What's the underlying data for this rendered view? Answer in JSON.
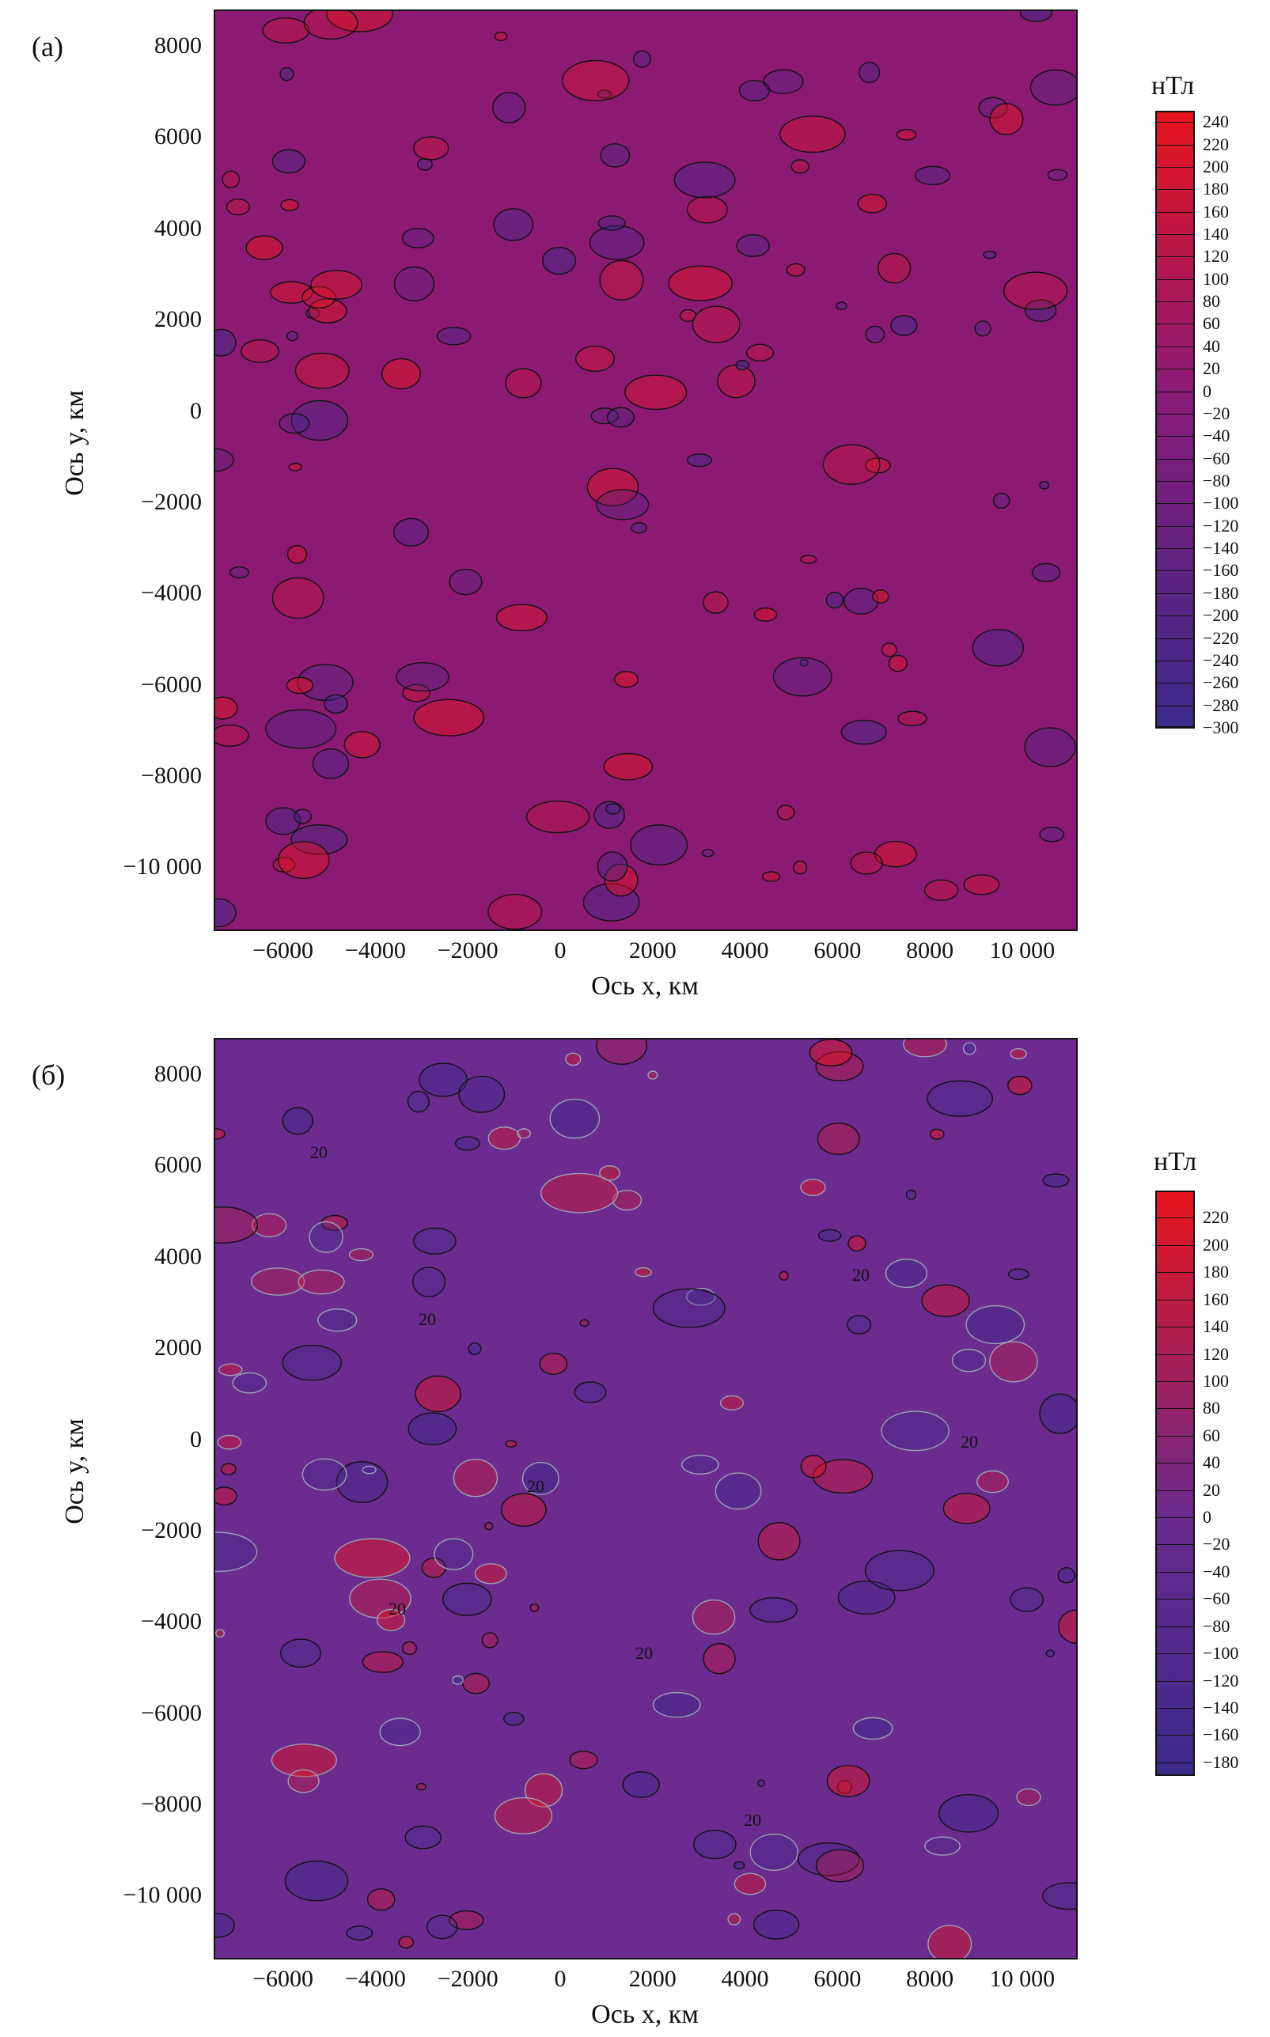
{
  "chart_data": [
    {
      "type": "heatmap",
      "panel_label": "(а)",
      "xlabel": "Ось x, км",
      "ylabel": "Ось y, км",
      "xlim": [
        -7500,
        11200
      ],
      "ylim": [
        -11400,
        8800
      ],
      "xticks": [
        "−6000",
        "−4000",
        "−2000",
        "0",
        "2000",
        "4000",
        "6000",
        "8000",
        "10 000"
      ],
      "xtick_values": [
        -6000,
        -4000,
        -2000,
        0,
        2000,
        4000,
        6000,
        8000,
        10000
      ],
      "yticks": [
        "8000",
        "6000",
        "4000",
        "2000",
        "0",
        "−2000",
        "−4000",
        "−6000",
        "−8000",
        "−10 000"
      ],
      "ytick_values": [
        8000,
        6000,
        4000,
        2000,
        0,
        -2000,
        -4000,
        -6000,
        -8000,
        -10000
      ],
      "colorbar": {
        "title": "нТл",
        "min": -300,
        "max": 250,
        "ticks": [
          "240",
          "220",
          "200",
          "180",
          "160",
          "140",
          "120",
          "100",
          "80",
          "60",
          "40",
          "20",
          "0",
          "−20",
          "−40",
          "−60",
          "−80",
          "−100",
          "−120",
          "−140",
          "−160",
          "−180",
          "−200",
          "−220",
          "−240",
          "−260",
          "−280",
          "−300"
        ],
        "tick_values": [
          240,
          220,
          200,
          180,
          160,
          140,
          120,
          100,
          80,
          60,
          40,
          20,
          0,
          -20,
          -40,
          -60,
          -80,
          -100,
          -120,
          -140,
          -160,
          -180,
          -200,
          -220,
          -240,
          -260,
          -280,
          -300
        ]
      },
      "colors": {
        "low": "#3a2a8a",
        "mid": "#8a1a78",
        "high": "#e8141c",
        "contour": "#111111"
      },
      "background_color": "#8c1a72"
    },
    {
      "type": "heatmap",
      "panel_label": "(б)",
      "xlabel": "Ось x, км",
      "ylabel": "Ось y, км",
      "xlim": [
        -7500,
        11200
      ],
      "ylim": [
        -11400,
        8800
      ],
      "xticks": [
        "−6000",
        "−4000",
        "−2000",
        "0",
        "2000",
        "4000",
        "6000",
        "8000",
        "10 000"
      ],
      "xtick_values": [
        -6000,
        -4000,
        -2000,
        0,
        2000,
        4000,
        6000,
        8000,
        10000
      ],
      "yticks": [
        "8000",
        "6000",
        "4000",
        "2000",
        "0",
        "−2000",
        "−4000",
        "−6000",
        "−8000",
        "−10 000"
      ],
      "ytick_values": [
        8000,
        6000,
        4000,
        2000,
        0,
        -2000,
        -4000,
        -6000,
        -8000,
        -10000
      ],
      "contour_labels": [
        "20",
        "20",
        "20",
        "20",
        "20",
        "20",
        "20",
        "20"
      ],
      "colorbar": {
        "title": "нТл",
        "min": -190,
        "max": 240,
        "ticks": [
          "220",
          "200",
          "180",
          "160",
          "140",
          "120",
          "100",
          "80",
          "60",
          "40",
          "20",
          "0",
          "−20",
          "−40",
          "−60",
          "−80",
          "−100",
          "−120",
          "−140",
          "−160",
          "−180"
        ],
        "tick_values": [
          220,
          200,
          180,
          160,
          140,
          120,
          100,
          80,
          60,
          40,
          20,
          0,
          -20,
          -40,
          -60,
          -80,
          -100,
          -120,
          -140,
          -160,
          -180
        ]
      },
      "colors": {
        "low": "#3a2a8a",
        "mid": "#6a2a8e",
        "high": "#e8141c",
        "contour": "#111111",
        "contour_light": "#9aa3b5"
      },
      "background_color": "#6b2b8f"
    }
  ]
}
